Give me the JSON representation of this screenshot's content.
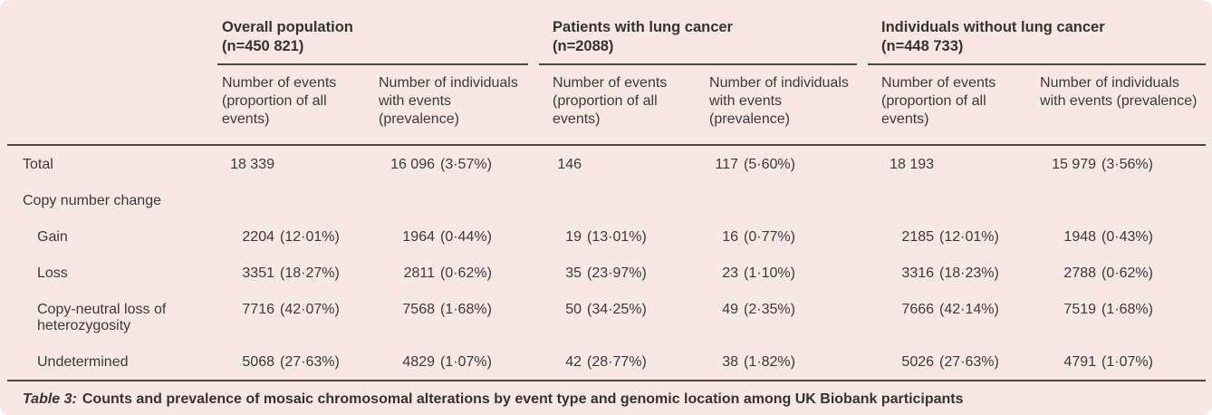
{
  "colors": {
    "panel_background": "#f8e8e4",
    "rule": "#4d4743",
    "text": "#3e3936"
  },
  "table": {
    "caption_label": "Table 3:",
    "caption_text": "Counts and prevalence of mosaic chromosomal alterations by event type and genomic location among UK Biobank participants",
    "groups": [
      {
        "title": "Overall population",
        "n": "(n=450 821)"
      },
      {
        "title": "Patients with lung cancer",
        "n": "(n=2088)"
      },
      {
        "title": "Individuals without lung cancer",
        "n": "(n=448 733)"
      }
    ],
    "subheaders": {
      "events": "Number of events (proportion of all events)",
      "individuals": "Number of individuals with events (prevalence)"
    },
    "rows": [
      {
        "label": "Total",
        "cells": [
          {
            "count": "18 339",
            "pct": ""
          },
          {
            "count": "16 096",
            "pct": "(3·57%)"
          },
          {
            "count": "146",
            "pct": ""
          },
          {
            "count": "117",
            "pct": "(5·60%)"
          },
          {
            "count": "18 193",
            "pct": ""
          },
          {
            "count": "15 979",
            "pct": "(3·56%)"
          }
        ]
      },
      {
        "label": "Copy number change",
        "cells": []
      },
      {
        "label": "Gain",
        "cells": [
          {
            "count": "2204",
            "pct": "(12·01%)"
          },
          {
            "count": "1964",
            "pct": "(0·44%)"
          },
          {
            "count": "19",
            "pct": "(13·01%)"
          },
          {
            "count": "16",
            "pct": "(0·77%)"
          },
          {
            "count": "2185",
            "pct": "(12·01%)"
          },
          {
            "count": "1948",
            "pct": "(0·43%)"
          }
        ]
      },
      {
        "label": "Loss",
        "cells": [
          {
            "count": "3351",
            "pct": "(18·27%)"
          },
          {
            "count": "2811",
            "pct": "(0·62%)"
          },
          {
            "count": "35",
            "pct": "(23·97%)"
          },
          {
            "count": "23",
            "pct": "(1·10%)"
          },
          {
            "count": "3316",
            "pct": "(18·23%)"
          },
          {
            "count": "2788",
            "pct": "(0·62%)"
          }
        ]
      },
      {
        "label": "Copy-neutral loss of heterozygosity",
        "cells": [
          {
            "count": "7716",
            "pct": "(42·07%)"
          },
          {
            "count": "7568",
            "pct": "(1·68%)"
          },
          {
            "count": "50",
            "pct": "(34·25%)"
          },
          {
            "count": "49",
            "pct": "(2·35%)"
          },
          {
            "count": "7666",
            "pct": "(42·14%)"
          },
          {
            "count": "7519",
            "pct": "(1·68%)"
          }
        ]
      },
      {
        "label": "Undetermined",
        "cells": [
          {
            "count": "5068",
            "pct": "(27·63%)"
          },
          {
            "count": "4829",
            "pct": "(1·07%)"
          },
          {
            "count": "42",
            "pct": "(28·77%)"
          },
          {
            "count": "38",
            "pct": "(1·82%)"
          },
          {
            "count": "5026",
            "pct": "(27·63%)"
          },
          {
            "count": "4791",
            "pct": "(1·07%)"
          }
        ]
      }
    ]
  }
}
